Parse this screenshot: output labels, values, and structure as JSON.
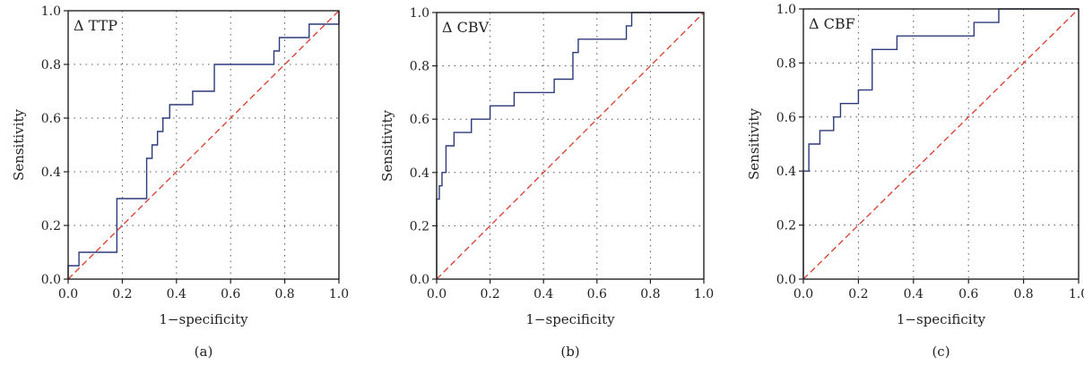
{
  "chart_data": [
    {
      "type": "line",
      "title": "Δ TTP",
      "caption": "(a)",
      "xlabel": "1−specificity",
      "ylabel": "Sensitivity",
      "xlim": [
        0,
        1
      ],
      "ylim": [
        0,
        1
      ],
      "xticks": [
        "0.0",
        "0.2",
        "0.4",
        "0.6",
        "0.8",
        "1.0"
      ],
      "yticks": [
        "0.0",
        "0.2",
        "0.4",
        "0.6",
        "0.8",
        "1.0"
      ],
      "grid": true,
      "series": [
        {
          "style": "roc-step",
          "color": "#2b3a7a",
          "x": [
            0,
            0,
            0.04,
            0.04,
            0.18,
            0.18,
            0.29,
            0.29,
            0.31,
            0.31,
            0.33,
            0.33,
            0.35,
            0.35,
            0.375,
            0.375,
            0.46,
            0.46,
            0.54,
            0.54,
            0.76,
            0.76,
            0.78,
            0.78,
            0.89,
            0.89,
            1.0,
            1.0
          ],
          "y": [
            0,
            0.05,
            0.05,
            0.1,
            0.1,
            0.3,
            0.3,
            0.45,
            0.45,
            0.5,
            0.5,
            0.55,
            0.55,
            0.6,
            0.6,
            0.65,
            0.65,
            0.7,
            0.7,
            0.8,
            0.8,
            0.85,
            0.85,
            0.9,
            0.9,
            0.95,
            0.95,
            1.0
          ]
        },
        {
          "style": "reference",
          "color": "#d93a2b",
          "x": [
            0,
            1
          ],
          "y": [
            0,
            1
          ]
        }
      ]
    },
    {
      "type": "line",
      "title": "Δ CBV",
      "caption": "(b)",
      "xlabel": "1−specificity",
      "ylabel": "Sensitivity",
      "xlim": [
        0,
        1
      ],
      "ylim": [
        0,
        1
      ],
      "xticks": [
        "0.0",
        "0.2",
        "0.4",
        "0.6",
        "0.8",
        "1.0"
      ],
      "yticks": [
        "0.0",
        "0.2",
        "0.4",
        "0.6",
        "0.8",
        "1.0"
      ],
      "grid": true,
      "series": [
        {
          "style": "roc-step",
          "color": "#2b3a7a",
          "x": [
            0,
            0,
            0.01,
            0.01,
            0.02,
            0.02,
            0.035,
            0.035,
            0.065,
            0.065,
            0.13,
            0.13,
            0.2,
            0.2,
            0.29,
            0.29,
            0.44,
            0.44,
            0.51,
            0.51,
            0.53,
            0.53,
            0.71,
            0.71,
            0.73,
            0.73,
            0.84,
            0.84,
            1.0
          ],
          "y": [
            0,
            0.3,
            0.3,
            0.35,
            0.35,
            0.4,
            0.4,
            0.5,
            0.5,
            0.55,
            0.55,
            0.6,
            0.6,
            0.65,
            0.65,
            0.7,
            0.7,
            0.75,
            0.75,
            0.85,
            0.85,
            0.9,
            0.9,
            0.95,
            0.95,
            1.0,
            1.0,
            1.0,
            1.0
          ]
        },
        {
          "style": "reference",
          "color": "#d93a2b",
          "x": [
            0,
            1
          ],
          "y": [
            0,
            1
          ]
        }
      ]
    },
    {
      "type": "line",
      "title": "Δ CBF",
      "caption": "(c)",
      "xlabel": "1−specificity",
      "ylabel": "Sensitivity",
      "xlim": [
        0,
        1
      ],
      "ylim": [
        0,
        1
      ],
      "xticks": [
        "0.0",
        "0.2",
        "0.4",
        "0.6",
        "0.8",
        "1.0"
      ],
      "yticks": [
        "0.0",
        "0.2",
        "0.4",
        "0.6",
        "0.8",
        "1.0"
      ],
      "grid": true,
      "series": [
        {
          "style": "roc-step",
          "color": "#2b3a7a",
          "x": [
            0,
            0,
            0.02,
            0.02,
            0.06,
            0.06,
            0.11,
            0.11,
            0.135,
            0.135,
            0.2,
            0.2,
            0.25,
            0.25,
            0.34,
            0.34,
            0.62,
            0.62,
            0.71,
            0.71,
            1.0
          ],
          "y": [
            0,
            0.4,
            0.4,
            0.5,
            0.5,
            0.55,
            0.55,
            0.6,
            0.6,
            0.65,
            0.65,
            0.7,
            0.7,
            0.85,
            0.85,
            0.9,
            0.9,
            0.95,
            0.95,
            1.0,
            1.0
          ]
        },
        {
          "style": "reference",
          "color": "#d93a2b",
          "x": [
            0,
            1
          ],
          "y": [
            0,
            1
          ]
        }
      ]
    }
  ]
}
